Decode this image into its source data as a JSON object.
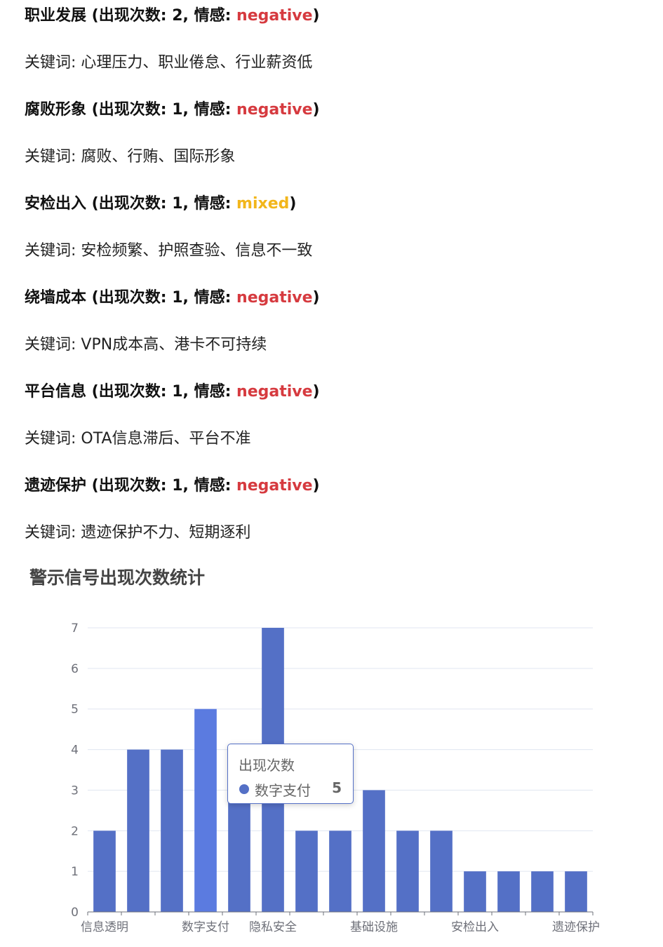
{
  "signals": [
    {
      "name": "职业发展",
      "count_label": "出现次数",
      "count": "2",
      "sentiment_label": "情感",
      "sentiment": "negative",
      "keywords_label": "关键词",
      "keywords": "心理压力、职业倦怠、行业薪资低"
    },
    {
      "name": "腐败形象",
      "count_label": "出现次数",
      "count": "1",
      "sentiment_label": "情感",
      "sentiment": "negative",
      "keywords_label": "关键词",
      "keywords": "腐败、行贿、国际形象"
    },
    {
      "name": "安检出入",
      "count_label": "出现次数",
      "count": "1",
      "sentiment_label": "情感",
      "sentiment": "mixed",
      "keywords_label": "关键词",
      "keywords": "安检频繁、护照查验、信息不一致"
    },
    {
      "name": "绕墙成本",
      "count_label": "出现次数",
      "count": "1",
      "sentiment_label": "情感",
      "sentiment": "negative",
      "keywords_label": "关键词",
      "keywords": "VPN成本高、港卡不可持续"
    },
    {
      "name": "平台信息",
      "count_label": "出现次数",
      "count": "1",
      "sentiment_label": "情感",
      "sentiment": "negative",
      "keywords_label": "关键词",
      "keywords": "OTA信息滞后、平台不准"
    },
    {
      "name": "遗迹保护",
      "count_label": "出现次数",
      "count": "1",
      "sentiment_label": "情感",
      "sentiment": "negative",
      "keywords_label": "关键词",
      "keywords": "遗迹保护不力、短期逐利"
    }
  ],
  "colors": {
    "negative": "#d63a3f",
    "mixed": "#f2b61b",
    "bar": "#5470c6",
    "bar_highlight": "#5b7be0",
    "grid": "#e0e6f1",
    "axis": "#6e7079"
  },
  "chart_data": {
    "type": "bar",
    "title": "警示信号出现次数统计",
    "series_name": "出现次数",
    "categories": [
      "信息透明",
      "",
      "",
      "数字支付",
      "",
      "隐私安全",
      "",
      "",
      "基础设施",
      "",
      "",
      "安检出入",
      "",
      "",
      "遗迹保护"
    ],
    "x_tick_labels": [
      "信息透明",
      "数字支付",
      "隐私安全",
      "基础设施",
      "安检出入",
      "遗迹保护"
    ],
    "values": [
      2,
      4,
      4,
      5,
      3,
      7,
      2,
      2,
      3,
      2,
      2,
      1,
      1,
      1,
      1
    ],
    "ylim": [
      0,
      7
    ],
    "y_ticks": [
      0,
      1,
      2,
      3,
      4,
      5,
      6,
      7
    ],
    "grid": true,
    "legend": "none",
    "highlighted_index": 3
  },
  "tooltip": {
    "title": "出现次数",
    "name": "数字支付",
    "value": "5"
  }
}
